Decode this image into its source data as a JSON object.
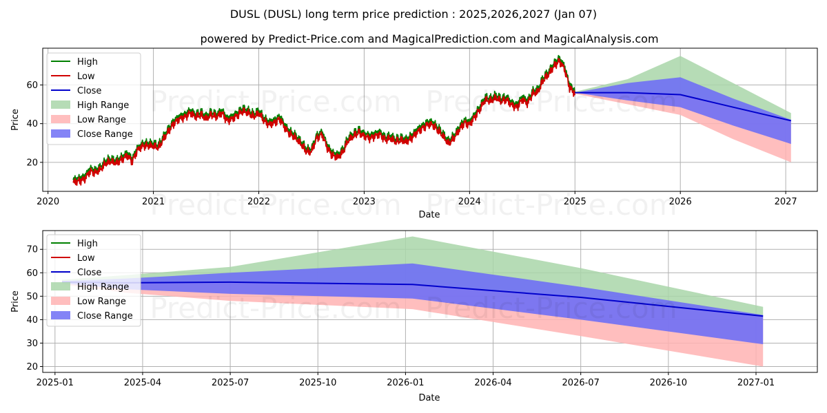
{
  "header": {
    "title": "DUSL (DUSL) long term price prediction : 2025,2026,2027 (Jan 07)",
    "subtitle": "powered by Predict-Price.com and MagicalPrediction.com and MagicalAnalysis.com"
  },
  "watermark": "Predict-Price.com",
  "colors": {
    "high": "#008000",
    "low": "#d00000",
    "close": "#0000cc",
    "high_range": "#a9d6a9",
    "low_range": "#ffb3b3",
    "close_range": "#6f6ff5"
  },
  "legend": [
    {
      "key": "high",
      "label": "High"
    },
    {
      "key": "low",
      "label": "Low"
    },
    {
      "key": "close",
      "label": "Close"
    },
    {
      "key": "high_range",
      "label": "High Range"
    },
    {
      "key": "low_range",
      "label": "Low Range"
    },
    {
      "key": "close_range",
      "label": "Close Range"
    }
  ],
  "chart_data": [
    {
      "type": "line",
      "title": "",
      "xlabel": "Date",
      "ylabel": "Price",
      "xlim": [
        2019.95,
        2027.3
      ],
      "ylim": [
        5,
        79
      ],
      "grid": true,
      "legend_position": "top-left",
      "x_ticks": [
        {
          "v": 2020,
          "label": "2020"
        },
        {
          "v": 2021,
          "label": "2021"
        },
        {
          "v": 2022,
          "label": "2022"
        },
        {
          "v": 2023,
          "label": "2023"
        },
        {
          "v": 2024,
          "label": "2024"
        },
        {
          "v": 2025,
          "label": "2025"
        },
        {
          "v": 2026,
          "label": "2026"
        },
        {
          "v": 2027,
          "label": "2027"
        }
      ],
      "y_ticks": [
        {
          "v": 20,
          "label": "20"
        },
        {
          "v": 40,
          "label": "40"
        },
        {
          "v": 60,
          "label": "60"
        }
      ],
      "history": {
        "x": [
          2020.24,
          2020.3,
          2020.35,
          2020.4,
          2020.45,
          2020.5,
          2020.55,
          2020.6,
          2020.65,
          2020.7,
          2020.75,
          2020.8,
          2020.85,
          2020.9,
          2020.95,
          2021.0,
          2021.05,
          2021.1,
          2021.15,
          2021.2,
          2021.25,
          2021.3,
          2021.35,
          2021.4,
          2021.45,
          2021.5,
          2021.55,
          2021.6,
          2021.65,
          2021.7,
          2021.75,
          2021.8,
          2021.85,
          2021.9,
          2021.95,
          2022.0,
          2022.05,
          2022.1,
          2022.15,
          2022.2,
          2022.25,
          2022.3,
          2022.35,
          2022.4,
          2022.45,
          2022.5,
          2022.55,
          2022.6,
          2022.65,
          2022.7,
          2022.75,
          2022.8,
          2022.85,
          2022.9,
          2022.95,
          2023.0,
          2023.05,
          2023.1,
          2023.15,
          2023.2,
          2023.25,
          2023.3,
          2023.35,
          2023.4,
          2023.45,
          2023.5,
          2023.55,
          2023.6,
          2023.65,
          2023.7,
          2023.75,
          2023.8,
          2023.85,
          2023.9,
          2023.95,
          2024.0,
          2024.05,
          2024.1,
          2024.15,
          2024.2,
          2024.25,
          2024.3,
          2024.35,
          2024.4,
          2024.45,
          2024.5,
          2024.55,
          2024.6,
          2024.65,
          2024.7,
          2024.75,
          2024.8,
          2024.85,
          2024.9,
          2024.95,
          2025.0
        ],
        "close": [
          10,
          11,
          12,
          16,
          15,
          17,
          20,
          21,
          20,
          22,
          24,
          21,
          27,
          29,
          29,
          29,
          28,
          33,
          37,
          41,
          43,
          44,
          46,
          44,
          45,
          43,
          45,
          44,
          46,
          42,
          43,
          45,
          47,
          46,
          44,
          46,
          42,
          40,
          41,
          43,
          38,
          35,
          33,
          30,
          26,
          26,
          33,
          35,
          28,
          24,
          23,
          26,
          32,
          34,
          36,
          34,
          33,
          34,
          35,
          32,
          33,
          31,
          32,
          31,
          33,
          36,
          38,
          40,
          40,
          37,
          34,
          30,
          33,
          37,
          41,
          40,
          44,
          48,
          53,
          52,
          54,
          52,
          53,
          50,
          49,
          53,
          51,
          56,
          57,
          63,
          66,
          70,
          73,
          69,
          59,
          56
        ]
      },
      "forecast": {
        "x": [
          2025.0,
          2025.5,
          2026.0,
          2026.5,
          2027.05
        ],
        "close": [
          56,
          56,
          55,
          48.5,
          41.5
        ],
        "high": [
          56.5,
          63,
          75,
          61,
          45.5
        ],
        "low": [
          55.5,
          50,
          44.5,
          32,
          20
        ],
        "close_range_upper": [
          56,
          61,
          64,
          53,
          42
        ],
        "close_range_lower": [
          56,
          52,
          48.5,
          39,
          29.5
        ]
      }
    },
    {
      "type": "line",
      "title": "",
      "xlabel": "Date",
      "ylabel": "Price",
      "xlim": [
        2024.965,
        2027.175
      ],
      "ylim": [
        17.5,
        78
      ],
      "grid": true,
      "legend_position": "top-left",
      "x_ticks": [
        {
          "v": 2025.0,
          "label": "2025-01"
        },
        {
          "v": 2025.25,
          "label": "2025-04"
        },
        {
          "v": 2025.5,
          "label": "2025-07"
        },
        {
          "v": 2025.75,
          "label": "2025-10"
        },
        {
          "v": 2026.0,
          "label": "2026-01"
        },
        {
          "v": 2026.25,
          "label": "2026-04"
        },
        {
          "v": 2026.5,
          "label": "2026-07"
        },
        {
          "v": 2026.75,
          "label": "2026-10"
        },
        {
          "v": 2027.0,
          "label": "2027-01"
        }
      ],
      "y_ticks": [
        {
          "v": 20,
          "label": "20"
        },
        {
          "v": 30,
          "label": "30"
        },
        {
          "v": 40,
          "label": "40"
        },
        {
          "v": 50,
          "label": "50"
        },
        {
          "v": 60,
          "label": "60"
        },
        {
          "v": 70,
          "label": "70"
        }
      ],
      "forecast": {
        "x": [
          2025.02,
          2025.2,
          2025.5,
          2026.02,
          2026.5,
          2027.02
        ],
        "close": [
          56,
          55.7,
          56,
          55,
          49.5,
          41.5
        ],
        "high": [
          57,
          59,
          62.5,
          75.5,
          62,
          45.5
        ],
        "low": [
          55,
          51.5,
          48,
          44.5,
          33,
          20
        ],
        "close_range_upper": [
          56.5,
          57.5,
          60,
          64,
          54,
          42
        ],
        "close_range_lower": [
          55.5,
          53,
          51,
          49,
          40,
          29.5
        ]
      }
    }
  ]
}
